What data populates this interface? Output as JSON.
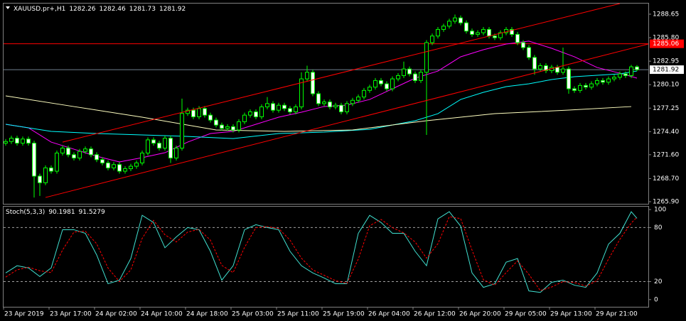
{
  "chart_data": [
    {
      "type": "candlestick",
      "title": "XAUUSD.pr+,H1",
      "header_values": [
        1282.26,
        1282.46,
        1281.73,
        1281.92
      ],
      "categories": [
        "23 Apr 2019",
        null,
        null,
        null,
        null,
        null,
        null,
        null,
        "23 Apr 17:00",
        null,
        null,
        null,
        null,
        null,
        null,
        null,
        "24 Apr 02:00",
        null,
        null,
        null,
        null,
        null,
        null,
        null,
        "24 Apr 10:00",
        null,
        null,
        null,
        null,
        null,
        null,
        null,
        "24 Apr 18:00",
        null,
        null,
        null,
        null,
        null,
        null,
        null,
        "25 Apr 03:00",
        null,
        null,
        null,
        null,
        null,
        null,
        null,
        "25 Apr 11:00",
        null,
        null,
        null,
        null,
        null,
        null,
        null,
        "25 Apr 19:00",
        null,
        null,
        null,
        null,
        null,
        null,
        null,
        "26 Apr 04:00",
        null,
        null,
        null,
        null,
        null,
        null,
        null,
        "26 Apr 12:00",
        null,
        null,
        null,
        null,
        null,
        null,
        null,
        "26 Apr 20:00",
        null,
        null,
        null,
        null,
        null,
        null,
        null,
        "29 Apr 05:00",
        null,
        null,
        null,
        null,
        null,
        null,
        null,
        "29 Apr 13:00",
        null,
        null,
        null,
        null,
        null,
        null,
        null,
        "29 Apr 21:00",
        null,
        null,
        null,
        null,
        null,
        null,
        null
      ],
      "open": [
        1273.0,
        1273.2,
        1273.6,
        1273.0,
        1273.5,
        1273.0,
        1269.0,
        1268.2,
        1270.0,
        1269.6,
        1271.8,
        1272.4,
        1271.6,
        1271.2,
        1272.0,
        1272.3,
        1271.6,
        1271.0,
        1270.6,
        1270.0,
        1270.4,
        1269.6,
        1269.9,
        1270.2,
        1270.6,
        1271.8,
        1273.4,
        1273.0,
        1272.4,
        1273.6,
        1271.2,
        1272.4,
        1276.6,
        1277.0,
        1276.2,
        1277.2,
        1276.4,
        1275.8,
        1275.2,
        1274.8,
        1275.0,
        1274.6,
        1275.6,
        1276.4,
        1276.8,
        1276.2,
        1277.4,
        1277.8,
        1277.0,
        1277.6,
        1277.2,
        1276.8,
        1277.4,
        1280.8,
        1281.6,
        1279.0,
        1277.8,
        1278.0,
        1277.4,
        1277.6,
        1276.8,
        1277.8,
        1278.2,
        1278.6,
        1279.4,
        1279.8,
        1280.6,
        1280.2,
        1279.6,
        1280.8,
        1281.2,
        1282.0,
        1281.4,
        1280.6,
        1281.6,
        1285.2,
        1286.0,
        1286.8,
        1287.2,
        1287.8,
        1288.2,
        1287.6,
        1286.6,
        1286.2,
        1286.4,
        1286.8,
        1286.0,
        1285.8,
        1286.4,
        1286.8,
        1286.2,
        1285.2,
        1284.6,
        1283.4,
        1282.0,
        1282.4,
        1281.8,
        1282.2,
        1281.6,
        1282.0,
        1279.6,
        1279.4,
        1280.0,
        1279.8,
        1280.2,
        1280.6,
        1280.4,
        1280.8,
        1281.0,
        1281.4,
        1281.2,
        1282.26
      ],
      "high": [
        1273.5,
        1273.9,
        1273.9,
        1273.8,
        1273.8,
        1273.3,
        1269.3,
        1270.3,
        1270.3,
        1272.1,
        1272.7,
        1272.7,
        1271.9,
        1272.3,
        1272.6,
        1272.6,
        1271.9,
        1271.3,
        1270.9,
        1270.7,
        1270.7,
        1270.2,
        1270.5,
        1270.9,
        1272.1,
        1273.7,
        1273.7,
        1273.3,
        1273.9,
        1273.9,
        1272.7,
        1278.4,
        1277.3,
        1277.3,
        1277.5,
        1277.5,
        1276.7,
        1276.1,
        1275.5,
        1275.3,
        1275.3,
        1275.9,
        1276.7,
        1277.1,
        1277.1,
        1277.7,
        1278.6,
        1278.1,
        1277.9,
        1277.9,
        1277.5,
        1277.7,
        1281.6,
        1282.4,
        1281.9,
        1279.3,
        1278.3,
        1278.3,
        1277.9,
        1277.9,
        1278.1,
        1278.5,
        1278.9,
        1279.7,
        1280.1,
        1280.9,
        1280.9,
        1280.5,
        1281.1,
        1281.5,
        1282.9,
        1282.3,
        1281.7,
        1281.9,
        1285.5,
        1286.3,
        1287.1,
        1287.5,
        1288.1,
        1288.6,
        1288.5,
        1287.9,
        1286.9,
        1286.7,
        1287.1,
        1287.1,
        1286.3,
        1286.7,
        1287.1,
        1287.1,
        1286.5,
        1285.5,
        1284.9,
        1283.7,
        1282.7,
        1282.7,
        1282.5,
        1282.5,
        1284.6,
        1282.3,
        1279.9,
        1280.3,
        1280.3,
        1280.5,
        1280.9,
        1280.9,
        1281.1,
        1281.3,
        1281.7,
        1281.7,
        1282.5,
        1282.46
      ],
      "low": [
        1272.7,
        1272.9,
        1272.7,
        1272.7,
        1272.7,
        1266.4,
        1266.6,
        1267.9,
        1269.3,
        1269.3,
        1271.5,
        1271.3,
        1270.9,
        1270.9,
        1271.7,
        1271.3,
        1270.7,
        1270.3,
        1269.7,
        1269.7,
        1269.3,
        1269.3,
        1269.6,
        1269.9,
        1270.3,
        1271.5,
        1272.7,
        1272.1,
        1272.1,
        1270.6,
        1270.9,
        1272.1,
        1276.3,
        1275.9,
        1275.9,
        1276.1,
        1275.5,
        1274.9,
        1274.5,
        1274.5,
        1274.3,
        1274.3,
        1275.3,
        1276.1,
        1275.9,
        1275.9,
        1277.1,
        1276.7,
        1276.7,
        1276.9,
        1276.5,
        1276.5,
        1277.1,
        1280.5,
        1278.7,
        1277.5,
        1277.5,
        1277.1,
        1277.1,
        1276.5,
        1276.5,
        1277.5,
        1277.9,
        1278.3,
        1279.1,
        1279.5,
        1279.9,
        1279.3,
        1279.3,
        1280.5,
        1280.9,
        1281.1,
        1280.3,
        1280.3,
        1274.0,
        1284.9,
        1285.7,
        1286.5,
        1286.9,
        1287.5,
        1287.3,
        1286.3,
        1285.9,
        1285.9,
        1286.1,
        1285.7,
        1285.5,
        1285.5,
        1286.1,
        1285.9,
        1284.9,
        1284.3,
        1283.1,
        1281.3,
        1281.7,
        1281.5,
        1281.5,
        1281.3,
        1281.3,
        1279.0,
        1279.1,
        1279.1,
        1279.5,
        1279.5,
        1279.9,
        1280.1,
        1280.1,
        1280.5,
        1280.7,
        1280.9,
        1280.9,
        1281.73
      ],
      "close": [
        1273.2,
        1273.6,
        1273.0,
        1273.5,
        1273.0,
        1269.0,
        1268.2,
        1270.0,
        1269.6,
        1271.8,
        1272.4,
        1271.6,
        1271.2,
        1272.0,
        1272.3,
        1271.6,
        1271.0,
        1270.6,
        1270.0,
        1270.4,
        1269.6,
        1269.9,
        1270.2,
        1270.6,
        1271.8,
        1273.4,
        1273.0,
        1272.4,
        1273.6,
        1271.2,
        1272.4,
        1276.6,
        1277.0,
        1276.2,
        1277.2,
        1276.4,
        1275.8,
        1275.2,
        1274.8,
        1275.0,
        1274.6,
        1275.6,
        1276.4,
        1276.8,
        1276.2,
        1277.4,
        1277.8,
        1277.0,
        1277.6,
        1277.2,
        1276.8,
        1277.4,
        1280.8,
        1281.6,
        1279.0,
        1277.8,
        1278.0,
        1277.4,
        1277.6,
        1276.8,
        1277.8,
        1278.2,
        1278.6,
        1279.4,
        1279.8,
        1280.6,
        1280.2,
        1279.6,
        1280.8,
        1281.2,
        1282.0,
        1281.4,
        1280.6,
        1281.6,
        1285.2,
        1286.0,
        1286.8,
        1287.2,
        1287.8,
        1288.2,
        1287.6,
        1286.6,
        1286.2,
        1286.4,
        1286.8,
        1286.0,
        1285.8,
        1286.4,
        1286.8,
        1286.2,
        1285.2,
        1284.6,
        1283.4,
        1282.0,
        1282.4,
        1281.8,
        1282.2,
        1281.6,
        1282.0,
        1279.6,
        1279.4,
        1280.0,
        1279.8,
        1280.2,
        1280.6,
        1280.4,
        1280.8,
        1281.0,
        1281.4,
        1281.2,
        1282.26,
        1281.92
      ],
      "color_up": "#000000",
      "color_down": "#ffffff",
      "wick_color": "#00ff00",
      "ylim": [
        1265.64,
        1289.94
      ],
      "yticks": [
        1288.65,
        {
          "value": 1285.8,
          "label": "1285.80"
        },
        1282.95,
        {
          "value": 1280.1,
          "label": "1280.10"
        },
        1277.25,
        {
          "value": 1274.4,
          "label": "1274.40"
        },
        {
          "value": 1271.6,
          "label": "1271.60"
        },
        {
          "value": 1268.7,
          "label": "1268.70"
        },
        {
          "value": 1265.9,
          "label": "1265.90"
        }
      ],
      "overlays": [
        {
          "color": "#ff00ff",
          "x": [
            0,
            4,
            8,
            12,
            16,
            20,
            24,
            28,
            32,
            36,
            40,
            44,
            48,
            52,
            56,
            60,
            64,
            68,
            72,
            76,
            80,
            84,
            88,
            92,
            96,
            100,
            104,
            108,
            111
          ],
          "values": [
            1275.29,
            1274.86,
            1273.13,
            1272.27,
            1271.41,
            1270.72,
            1271.24,
            1271.84,
            1273.13,
            1274.17,
            1274.43,
            1275.29,
            1276.15,
            1276.76,
            1277.45,
            1277.62,
            1278.3,
            1279.6,
            1280.89,
            1281.75,
            1283.48,
            1284.34,
            1285.03,
            1285.38,
            1284.51,
            1283.48,
            1282.18,
            1281.49,
            1280.89
          ]
        },
        {
          "color": "#00ffff",
          "x": [
            0,
            8,
            16,
            24,
            32,
            40,
            48,
            56,
            64,
            72,
            76,
            80,
            84,
            88,
            92,
            96,
            100,
            104,
            108,
            111
          ],
          "values": [
            1275.29,
            1274.43,
            1274.17,
            1274.0,
            1273.82,
            1273.56,
            1274.17,
            1274.34,
            1274.68,
            1275.72,
            1276.58,
            1278.3,
            1279.17,
            1279.86,
            1280.2,
            1280.72,
            1281.06,
            1281.24,
            1281.41,
            1281.75
          ]
        },
        {
          "color": "#ffffc0",
          "x": [
            0,
            12,
            24,
            37,
            49,
            61,
            74,
            86,
            99,
            110
          ],
          "values": [
            1278.74,
            1277.44,
            1276.15,
            1274.6,
            1274.43,
            1274.6,
            1275.72,
            1276.58,
            1277.01,
            1277.44
          ]
        }
      ],
      "trend_lines": [
        {
          "color": "#ff0000",
          "x": [
            10,
            108
          ],
          "values": [
            1273.13,
            1289.94
          ]
        },
        {
          "color": "#ff0000",
          "x": [
            7,
            113
          ],
          "values": [
            1266.41,
            1285.03
          ]
        }
      ],
      "hlines": [
        {
          "value": 1285.06,
          "color": "#ff0000",
          "label_bg": "#ff0000",
          "label_color": "#ffffff"
        },
        {
          "value": 1281.92,
          "color": "#708090",
          "label_bg": "#ffffff",
          "label_color": "#000000"
        }
      ]
    },
    {
      "type": "line",
      "title": "Stoch(5,3,3)",
      "header_values": [
        90.1981,
        91.5279
      ],
      "series": [
        {
          "color": "#40e0d0",
          "dashed": false,
          "x": [
            0,
            2,
            4,
            6,
            8,
            10,
            12,
            14,
            16,
            18,
            20,
            22,
            24,
            26,
            28,
            30,
            32,
            34,
            36,
            38,
            40,
            42,
            44,
            46,
            48,
            50,
            52,
            54,
            56,
            58,
            60,
            62,
            64,
            66,
            68,
            70,
            72,
            74,
            76,
            78,
            80,
            82,
            84,
            86,
            88,
            90,
            92,
            94,
            96,
            98,
            100,
            102,
            104,
            106,
            108,
            110,
            111
          ],
          "values": [
            29.6,
            37.6,
            35.2,
            25.6,
            35.2,
            77.6,
            77.6,
            73.6,
            49.6,
            17.6,
            21.6,
            45.6,
            93.6,
            85.6,
            57.6,
            69.6,
            80,
            77.6,
            53.6,
            21.6,
            37.6,
            77.6,
            83.2,
            80,
            77.6,
            53.6,
            37.6,
            29.6,
            24,
            17.6,
            17.6,
            73.6,
            93.6,
            85.6,
            73.6,
            73.6,
            53.6,
            37.6,
            89.6,
            97.6,
            81.6,
            29.6,
            13.6,
            17.6,
            41.6,
            45.6,
            9.6,
            8,
            19.2,
            21.6,
            16,
            13.6,
            29.6,
            61.6,
            73.6,
            97.6,
            90.1981
          ]
        },
        {
          "color": "#ff0000",
          "dashed": true,
          "x": [
            0,
            2,
            4,
            6,
            8,
            10,
            12,
            14,
            16,
            18,
            20,
            22,
            24,
            26,
            28,
            30,
            32,
            34,
            36,
            38,
            40,
            42,
            44,
            46,
            48,
            50,
            52,
            54,
            56,
            58,
            60,
            62,
            64,
            66,
            68,
            70,
            72,
            74,
            76,
            78,
            80,
            82,
            84,
            86,
            88,
            90,
            92,
            94,
            96,
            98,
            100,
            102,
            104,
            106,
            108,
            110,
            111
          ],
          "values": [
            25,
            33,
            36,
            32,
            30,
            55,
            75,
            76,
            62,
            35,
            20,
            33,
            68,
            88,
            72,
            64,
            75,
            78,
            66,
            38,
            30,
            58,
            80,
            81,
            79,
            66,
            46,
            33,
            27,
            21,
            18,
            45,
            82,
            89,
            80,
            74,
            64,
            46,
            62,
            92,
            90,
            55,
            22,
            16,
            30,
            43,
            28,
            10,
            14,
            20,
            19,
            15,
            21,
            45,
            67,
            85,
            91.5279
          ]
        }
      ],
      "ylim": [
        -8,
        103.2
      ],
      "yticks": [
        0,
        20,
        80,
        100
      ],
      "levels": [
        20,
        80
      ]
    }
  ]
}
